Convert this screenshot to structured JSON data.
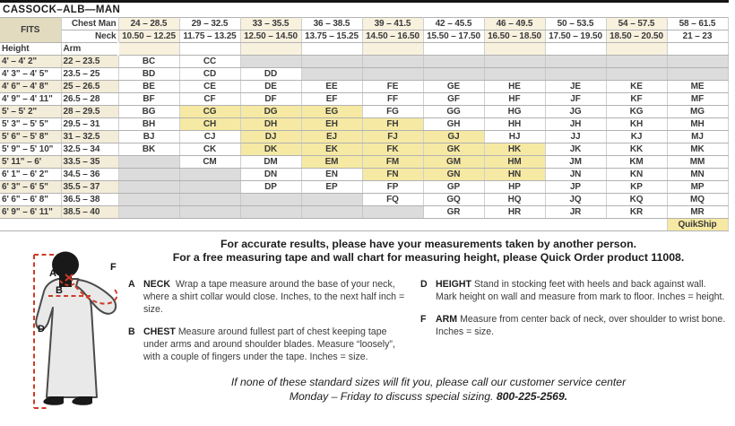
{
  "title": "CASSOCK–ALB—MAN",
  "table": {
    "fits_label": "FITS",
    "chest_label": "Chest Man",
    "neck_label": "Neck",
    "height_label": "Height",
    "arm_label": "Arm",
    "chest_ranges": [
      "24 – 28.5",
      "29 – 32.5",
      "33 – 35.5",
      "36 – 38.5",
      "39 – 41.5",
      "42 – 45.5",
      "46 – 49.5",
      "50 – 53.5",
      "54 – 57.5",
      "58 – 61.5"
    ],
    "neck_ranges": [
      "10.50 – 12.25",
      "11.75 – 13.25",
      "12.50 – 14.50",
      "13.75 – 15.25",
      "14.50 – 16.50",
      "15.50 – 17.50",
      "16.50 – 18.50",
      "17.50 – 19.50",
      "18.50 – 20.50",
      "21 – 23"
    ],
    "rows": [
      {
        "height": "4' – 4' 2\"",
        "arm": "22 – 23.5",
        "sizes": [
          "BC",
          "CC",
          "",
          "",
          "",
          "",
          "",
          "",
          "",
          ""
        ]
      },
      {
        "height": "4' 3\" – 4' 5\"",
        "arm": "23.5 – 25",
        "sizes": [
          "BD",
          "CD",
          "DD",
          "",
          "",
          "",
          "",
          "",
          "",
          ""
        ]
      },
      {
        "height": "4' 6\" – 4' 8\"",
        "arm": "25 – 26.5",
        "sizes": [
          "BE",
          "CE",
          "DE",
          "EE",
          "FE",
          "GE",
          "HE",
          "JE",
          "KE",
          "ME"
        ]
      },
      {
        "height": "4' 9\" – 4' 11\"",
        "arm": "26.5 – 28",
        "sizes": [
          "BF",
          "CF",
          "DF",
          "EF",
          "FF",
          "GF",
          "HF",
          "JF",
          "KF",
          "MF"
        ]
      },
      {
        "height": "5' – 5' 2\"",
        "arm": "28 – 29.5",
        "sizes": [
          "BG",
          "CG",
          "DG",
          "EG",
          "FG",
          "GG",
          "HG",
          "JG",
          "KG",
          "MG"
        ]
      },
      {
        "height": "5' 3\" – 5' 5\"",
        "arm": "29.5 – 31",
        "sizes": [
          "BH",
          "CH",
          "DH",
          "EH",
          "FH",
          "GH",
          "HH",
          "JH",
          "KH",
          "MH"
        ]
      },
      {
        "height": "5' 6\" – 5' 8\"",
        "arm": "31 – 32.5",
        "sizes": [
          "BJ",
          "CJ",
          "DJ",
          "EJ",
          "FJ",
          "GJ",
          "HJ",
          "JJ",
          "KJ",
          "MJ"
        ]
      },
      {
        "height": "5' 9\" – 5' 10\"",
        "arm": "32.5 – 34",
        "sizes": [
          "BK",
          "CK",
          "DK",
          "EK",
          "FK",
          "GK",
          "HK",
          "JK",
          "KK",
          "MK"
        ]
      },
      {
        "height": "5' 11\" – 6'",
        "arm": "33.5 – 35",
        "sizes": [
          "",
          "CM",
          "DM",
          "EM",
          "FM",
          "GM",
          "HM",
          "JM",
          "KM",
          "MM"
        ]
      },
      {
        "height": "6' 1\" – 6' 2\"",
        "arm": "34.5 – 36",
        "sizes": [
          "",
          "",
          "DN",
          "EN",
          "FN",
          "GN",
          "HN",
          "JN",
          "KN",
          "MN"
        ]
      },
      {
        "height": "6' 3\" – 6' 5\"",
        "arm": "35.5 – 37",
        "sizes": [
          "",
          "",
          "DP",
          "EP",
          "FP",
          "GP",
          "HP",
          "JP",
          "KP",
          "MP"
        ]
      },
      {
        "height": "6' 6\" – 6' 8\"",
        "arm": "36.5 – 38",
        "sizes": [
          "",
          "",
          "",
          "",
          "FQ",
          "GQ",
          "HQ",
          "JQ",
          "KQ",
          "MQ"
        ]
      },
      {
        "height": "6' 9\" – 6' 11\"",
        "arm": "38.5 – 40",
        "sizes": [
          "",
          "",
          "",
          "",
          "",
          "GR",
          "HR",
          "JR",
          "KR",
          "MR"
        ]
      }
    ],
    "quikship_codes": [
      "CG",
      "DG",
      "EG",
      "CH",
      "DH",
      "EH",
      "FH",
      "DJ",
      "EJ",
      "FJ",
      "GJ",
      "DK",
      "EK",
      "FK",
      "GK",
      "HK",
      "EM",
      "FM",
      "GM",
      "HM",
      "FN",
      "GN",
      "HN"
    ],
    "quikship_label": "QuikShip"
  },
  "intro": {
    "line1": "For accurate results, please have your measurements taken by another person.",
    "line2": "For a free measuring tape and wall chart for measuring height, please Quick Order product 11008."
  },
  "instructions": [
    {
      "letter": "A",
      "term": "NECK",
      "text": "Wrap a tape measure around the base of your neck, where a shirt collar would close. Inches, to the next half inch = size."
    },
    {
      "letter": "B",
      "term": "CHEST",
      "text": "Measure around fullest part of chest keeping tape under arms and around shoulder blades. Measure “loosely”, with a couple of fingers under the tape. Inches = size."
    },
    {
      "letter": "D",
      "term": "HEIGHT",
      "text": "Stand in stocking feet with heels and back against wall. Mark height on wall and measure from mark to floor. Inches = height."
    },
    {
      "letter": "F",
      "term": "ARM",
      "text": "Measure from center back of neck, over shoulder to wrist bone. Inches = size."
    }
  ],
  "footer": {
    "line1": "If none of these standard sizes will fit you, please call our customer service center",
    "line2": "Monday – Friday to discuss special sizing.",
    "phone": "800-225-2569."
  },
  "figure": {
    "labels": {
      "a": "A",
      "b": "B",
      "d": "D",
      "f": "F"
    }
  },
  "colors": {
    "fits_tan": "#e2dbc0",
    "header_cream": "#f7f1de",
    "row_beige": "#f2ecd8",
    "quikship_yellow": "#f6e9a3",
    "unavailable_gray": "#dcdcdc",
    "measure_line_red": "#cf3b28"
  }
}
